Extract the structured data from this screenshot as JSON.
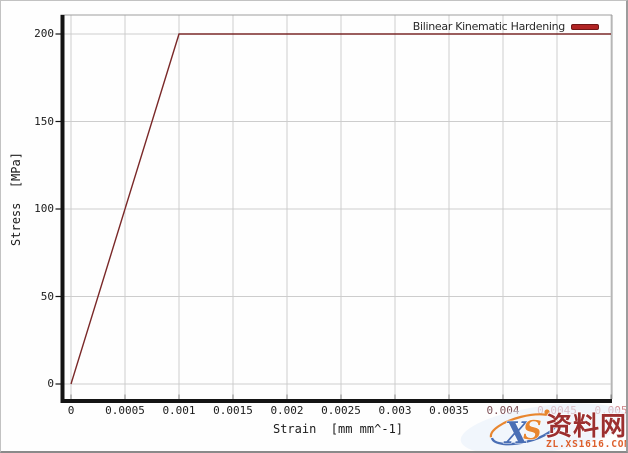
{
  "chart_data": {
    "type": "line",
    "title": "",
    "xlabel": "Strain  [mm mm^-1]",
    "ylabel": "Stress  [MPa]",
    "xlim": [
      0,
      0.005
    ],
    "ylim": [
      0,
      200
    ],
    "grid": true,
    "legend_position": "top-right",
    "series": [
      {
        "name": "Bilinear Kinematic Hardening",
        "color": "#7a2828",
        "points": [
          [
            0,
            0
          ],
          [
            0.001,
            200
          ],
          [
            0.005,
            200
          ]
        ]
      }
    ],
    "x_ticks": [
      {
        "v": 0,
        "label": "0"
      },
      {
        "v": 0.0005,
        "label": "0.0005"
      },
      {
        "v": 0.001,
        "label": "0.001"
      },
      {
        "v": 0.0015,
        "label": "0.0015"
      },
      {
        "v": 0.002,
        "label": "0.002"
      },
      {
        "v": 0.0025,
        "label": "0.0025"
      },
      {
        "v": 0.003,
        "label": "0.003"
      },
      {
        "v": 0.0035,
        "label": "0.0035"
      },
      {
        "v": 0.004,
        "label": "0.004"
      },
      {
        "v": 0.0045,
        "label": "0.0045"
      },
      {
        "v": 0.005,
        "label": "0.005"
      }
    ],
    "y_ticks": [
      {
        "v": 0,
        "label": "0"
      },
      {
        "v": 50,
        "label": "50"
      },
      {
        "v": 100,
        "label": "100"
      },
      {
        "v": 150,
        "label": "150"
      },
      {
        "v": 200,
        "label": "200"
      }
    ]
  },
  "colors": {
    "curve": "#7a2828",
    "legend_swatch": "#b12424",
    "gridline": "#cdcdcd",
    "axis": "#141414",
    "plot_border": "#9f9f9f",
    "watermark_blue": "#4a6fb5",
    "watermark_orange": "#e8862f",
    "watermark_red": "#9c2f2f"
  },
  "watermark": {
    "logo_x": "X",
    "logo_s": "S",
    "site_name": "资料网",
    "site_url": "ZL.XS1616.COM"
  }
}
